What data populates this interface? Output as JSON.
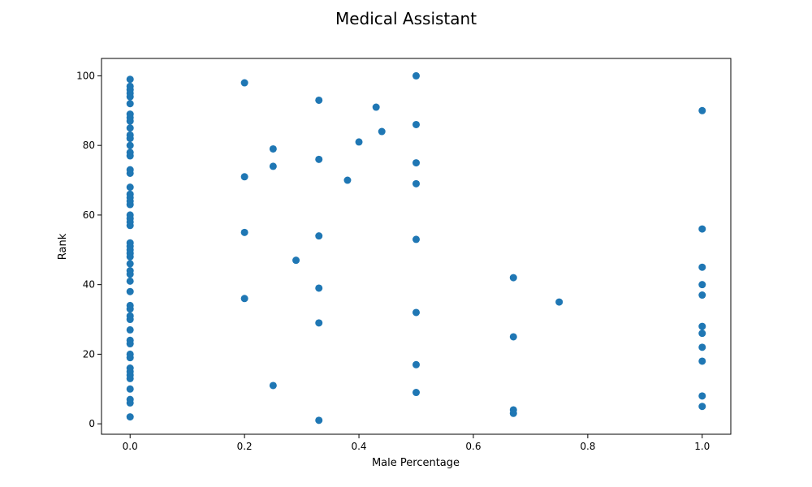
{
  "chart_data": {
    "type": "scatter",
    "title": "Medical Assistant",
    "xlabel": "Male Percentage",
    "ylabel": "Rank",
    "xlim": [
      -0.05,
      1.05
    ],
    "ylim": [
      -3,
      105
    ],
    "xticks": [
      0.0,
      0.2,
      0.4,
      0.6,
      0.8,
      1.0
    ],
    "xtick_labels": [
      "0.0",
      "0.2",
      "0.4",
      "0.6",
      "0.8",
      "1.0"
    ],
    "yticks": [
      0,
      20,
      40,
      60,
      80,
      100
    ],
    "ytick_labels": [
      "0",
      "20",
      "40",
      "60",
      "80",
      "100"
    ],
    "grid": false,
    "color": "#1f77b4",
    "points": [
      [
        0,
        99
      ],
      [
        0,
        97
      ],
      [
        0,
        96
      ],
      [
        0,
        95
      ],
      [
        0,
        94
      ],
      [
        0,
        92
      ],
      [
        0,
        89
      ],
      [
        0,
        88
      ],
      [
        0,
        87
      ],
      [
        0,
        85
      ],
      [
        0,
        83
      ],
      [
        0,
        82
      ],
      [
        0,
        80
      ],
      [
        0,
        78
      ],
      [
        0,
        77
      ],
      [
        0,
        73
      ],
      [
        0,
        72
      ],
      [
        0,
        68
      ],
      [
        0,
        66
      ],
      [
        0,
        65
      ],
      [
        0,
        64
      ],
      [
        0,
        63
      ],
      [
        0,
        60
      ],
      [
        0,
        59
      ],
      [
        0,
        58
      ],
      [
        0,
        57
      ],
      [
        0,
        52
      ],
      [
        0,
        51
      ],
      [
        0,
        50
      ],
      [
        0,
        49
      ],
      [
        0,
        48
      ],
      [
        0,
        46
      ],
      [
        0,
        44
      ],
      [
        0,
        43
      ],
      [
        0,
        41
      ],
      [
        0,
        38
      ],
      [
        0,
        34
      ],
      [
        0,
        33
      ],
      [
        0,
        31
      ],
      [
        0,
        30
      ],
      [
        0,
        27
      ],
      [
        0,
        24
      ],
      [
        0,
        23
      ],
      [
        0,
        20
      ],
      [
        0,
        19
      ],
      [
        0,
        16
      ],
      [
        0,
        15
      ],
      [
        0,
        14
      ],
      [
        0,
        13
      ],
      [
        0,
        10
      ],
      [
        0,
        7
      ],
      [
        0,
        6
      ],
      [
        0,
        2
      ],
      [
        0.2,
        98
      ],
      [
        0.2,
        71
      ],
      [
        0.2,
        55
      ],
      [
        0.2,
        36
      ],
      [
        0.25,
        79
      ],
      [
        0.25,
        74
      ],
      [
        0.25,
        11
      ],
      [
        0.29,
        47
      ],
      [
        0.33,
        93
      ],
      [
        0.33,
        76
      ],
      [
        0.33,
        54
      ],
      [
        0.33,
        39
      ],
      [
        0.33,
        29
      ],
      [
        0.33,
        1
      ],
      [
        0.38,
        70
      ],
      [
        0.4,
        81
      ],
      [
        0.43,
        91
      ],
      [
        0.44,
        84
      ],
      [
        0.5,
        100
      ],
      [
        0.5,
        86
      ],
      [
        0.5,
        75
      ],
      [
        0.5,
        69
      ],
      [
        0.5,
        53
      ],
      [
        0.5,
        32
      ],
      [
        0.5,
        17
      ],
      [
        0.5,
        9
      ],
      [
        0.67,
        42
      ],
      [
        0.67,
        25
      ],
      [
        0.67,
        4
      ],
      [
        0.67,
        3
      ],
      [
        0.75,
        35
      ],
      [
        1.0,
        90
      ],
      [
        1.0,
        56
      ],
      [
        1.0,
        45
      ],
      [
        1.0,
        40
      ],
      [
        1.0,
        37
      ],
      [
        1.0,
        28
      ],
      [
        1.0,
        26
      ],
      [
        1.0,
        22
      ],
      [
        1.0,
        18
      ],
      [
        1.0,
        8
      ],
      [
        1.0,
        5
      ]
    ]
  }
}
